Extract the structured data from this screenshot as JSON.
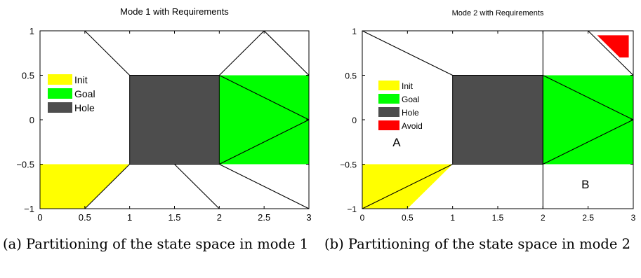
{
  "chart_data": [
    {
      "type": "diagram",
      "title": "Mode 1 with Requirements",
      "xlim": [
        0,
        3
      ],
      "ylim": [
        -1,
        1
      ],
      "xticks": [
        "0",
        "0.5",
        "1",
        "1.5",
        "2",
        "2.5",
        "3"
      ],
      "yticks": [
        "−1",
        "−0.5",
        "0",
        "0.5",
        "1"
      ],
      "legend": [
        {
          "label": "Init",
          "color": "#ffff00"
        },
        {
          "label": "Goal",
          "color": "#00ff00"
        },
        {
          "label": "Hole",
          "color": "#4d4d4d"
        }
      ],
      "regions": [
        {
          "name": "init",
          "color": "#ffff00",
          "points": [
            [
              0,
              -0.5
            ],
            [
              1,
              -0.5
            ],
            [
              0.5,
              -1
            ],
            [
              0,
              -1
            ]
          ]
        },
        {
          "name": "goal",
          "color": "#00ff00",
          "points": [
            [
              2,
              0.5
            ],
            [
              3,
              0.5
            ],
            [
              3,
              -0.5
            ],
            [
              2,
              -0.5
            ]
          ]
        },
        {
          "name": "hole",
          "color": "#4d4d4d",
          "points": [
            [
              1,
              0.5
            ],
            [
              2,
              0.5
            ],
            [
              2,
              -0.5
            ],
            [
              1,
              -0.5
            ]
          ]
        }
      ],
      "partition_lines": [
        [
          [
            0.5,
            1
          ],
          [
            1,
            0.5
          ]
        ],
        [
          [
            1,
            -0.5
          ],
          [
            0.5,
            -1
          ]
        ],
        [
          [
            1.5,
            -0.5
          ],
          [
            2,
            -1
          ]
        ],
        [
          [
            2,
            0.5
          ],
          [
            2.5,
            1
          ]
        ],
        [
          [
            2.5,
            1
          ],
          [
            3,
            0.5
          ]
        ],
        [
          [
            2,
            0.5
          ],
          [
            3,
            0
          ]
        ],
        [
          [
            2,
            -0.5
          ],
          [
            3,
            0
          ]
        ],
        [
          [
            2,
            -0.5
          ],
          [
            3,
            -1
          ]
        ]
      ],
      "annotations": []
    },
    {
      "type": "diagram",
      "title": "Mode 2 with Requirements",
      "xlim": [
        0,
        3
      ],
      "ylim": [
        -1,
        1
      ],
      "xticks": [
        "0",
        "0.5",
        "1",
        "1.5",
        "2",
        "2.5",
        "3"
      ],
      "yticks": [
        "−1",
        "−0.5",
        "0",
        "0.5",
        "1"
      ],
      "legend": [
        {
          "label": "Init",
          "color": "#ffff00"
        },
        {
          "label": "Goal",
          "color": "#00ff00"
        },
        {
          "label": "Hole",
          "color": "#4d4d4d"
        },
        {
          "label": "Avoid",
          "color": "#ff0000"
        }
      ],
      "regions": [
        {
          "name": "init",
          "color": "#ffff00",
          "points": [
            [
              0,
              -0.5
            ],
            [
              1,
              -0.5
            ],
            [
              0.5,
              -1
            ],
            [
              0,
              -1
            ]
          ]
        },
        {
          "name": "goal",
          "color": "#00ff00",
          "points": [
            [
              2,
              0.5
            ],
            [
              3,
              0.5
            ],
            [
              3,
              -0.5
            ],
            [
              2,
              -0.5
            ]
          ]
        },
        {
          "name": "hole",
          "color": "#4d4d4d",
          "points": [
            [
              1,
              0.5
            ],
            [
              2,
              0.5
            ],
            [
              2,
              -0.5
            ],
            [
              1,
              -0.5
            ]
          ]
        },
        {
          "name": "avoid",
          "color": "#ff0000",
          "points": [
            [
              2.6,
              0.95
            ],
            [
              2.95,
              0.95
            ],
            [
              2.95,
              0.7
            ],
            [
              2.85,
              0.7
            ]
          ]
        }
      ],
      "partition_lines": [
        [
          [
            0,
            1
          ],
          [
            1,
            0.5
          ]
        ],
        [
          [
            1,
            -0.5
          ],
          [
            0,
            -1
          ]
        ],
        [
          [
            2,
            1
          ],
          [
            2,
            -1
          ]
        ],
        [
          [
            2.5,
            1
          ],
          [
            3,
            0.5
          ]
        ],
        [
          [
            2,
            0.5
          ],
          [
            3,
            0
          ]
        ],
        [
          [
            2,
            -0.5
          ],
          [
            3,
            0
          ]
        ]
      ],
      "annotations": [
        {
          "text": "A",
          "x": 0.38,
          "y": -0.3
        },
        {
          "text": "B",
          "x": 2.47,
          "y": -0.77
        }
      ]
    }
  ],
  "captions": {
    "a": "(a) Partitioning of the state space in mode 1",
    "b": "(b) Partitioning of the state space in mode 2"
  }
}
